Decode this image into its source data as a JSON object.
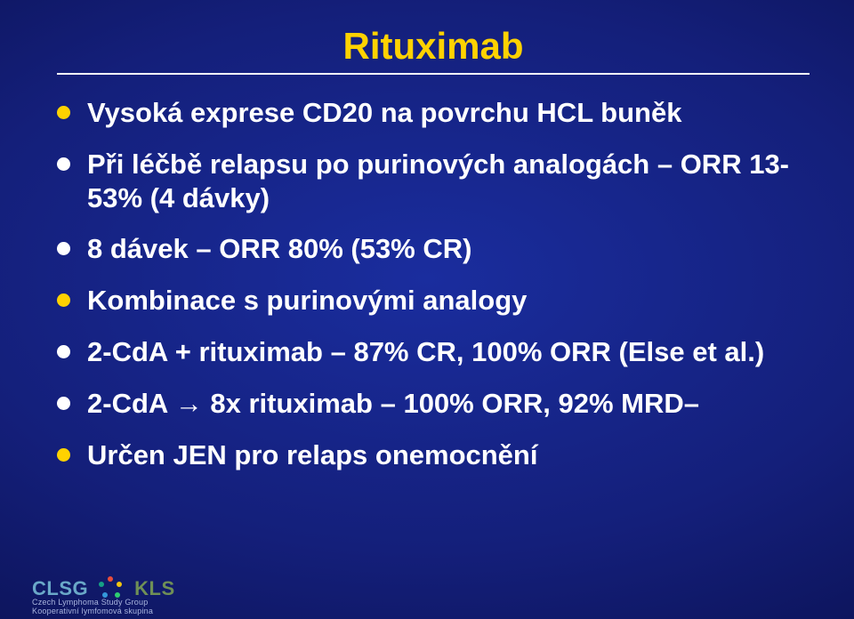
{
  "title": {
    "text": "Rituximab",
    "color": "#ffd200"
  },
  "bullets": [
    {
      "text": "Vysoká exprese CD20 na povrchu HCL buněk",
      "style": "yellow"
    },
    {
      "text": "Při léčbě relapsu po purinových analogách – ORR 13-53% (4 dávky)",
      "style": "white"
    },
    {
      "text": "8 dávek  – ORR 80% (53% CR)",
      "style": "white"
    },
    {
      "text": "Kombinace s purinovými analogy",
      "style": "yellow"
    },
    {
      "text": "2-CdA + rituximab – 87% CR, 100% ORR (Else et al.)",
      "style": "white"
    },
    {
      "text": "2-CdA → 8x rituximab – 100% ORR, 92% MRD–",
      "style": "white",
      "arrow": true
    },
    {
      "text": "Určen JEN pro relaps onemocnění",
      "style": "yellow"
    }
  ],
  "footer": {
    "clsg": "CLSG",
    "kls": "KLS",
    "sub1": "Czech Lymphoma Study Group",
    "sub2": "Kooperativní lymfomová skupina",
    "swirl_colors": [
      "#e74c3c",
      "#f1c40f",
      "#2ecc71",
      "#3498db",
      "#16a085"
    ]
  }
}
